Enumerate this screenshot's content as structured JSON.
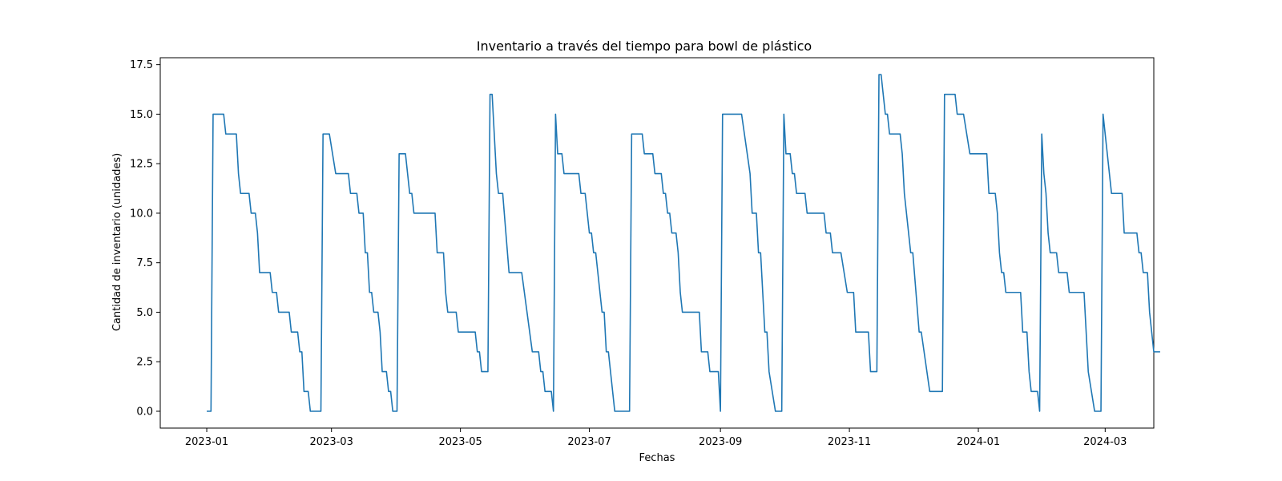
{
  "chart_data": {
    "type": "line",
    "title": "Inventario a través del tiempo para bowl de plástico",
    "xlabel": "Fechas",
    "ylabel": "Cantidad de inventario (unidades)",
    "xlim": [
      "2022-12-10",
      "2024-03-24"
    ],
    "ylim": [
      -0.85,
      17.85
    ],
    "grid": false,
    "x_ticks": [
      "2023-01",
      "2023-03",
      "2023-05",
      "2023-07",
      "2023-09",
      "2023-11",
      "2024-01",
      "2024-03"
    ],
    "y_ticks": [
      "0.0",
      "2.5",
      "5.0",
      "7.5",
      "10.0",
      "12.5",
      "15.0",
      "17.5"
    ],
    "series": [
      {
        "color": "#1f77b4",
        "points": [
          [
            "2023-01-01",
            0
          ],
          [
            "2023-01-03",
            0
          ],
          [
            "2023-01-04",
            15
          ],
          [
            "2023-01-09",
            15
          ],
          [
            "2023-01-10",
            14
          ],
          [
            "2023-01-15",
            14
          ],
          [
            "2023-01-16",
            12
          ],
          [
            "2023-01-17",
            11
          ],
          [
            "2023-01-21",
            11
          ],
          [
            "2023-01-22",
            10
          ],
          [
            "2023-01-24",
            10
          ],
          [
            "2023-01-25",
            9
          ],
          [
            "2023-01-26",
            7
          ],
          [
            "2023-01-31",
            7
          ],
          [
            "2023-02-01",
            6
          ],
          [
            "2023-02-03",
            6
          ],
          [
            "2023-02-04",
            5
          ],
          [
            "2023-02-09",
            5
          ],
          [
            "2023-02-10",
            4
          ],
          [
            "2023-02-13",
            4
          ],
          [
            "2023-02-14",
            3
          ],
          [
            "2023-02-15",
            3
          ],
          [
            "2023-02-16",
            1
          ],
          [
            "2023-02-18",
            1
          ],
          [
            "2023-02-19",
            0
          ],
          [
            "2023-02-24",
            0
          ],
          [
            "2023-02-25",
            14
          ],
          [
            "2023-02-28",
            14
          ],
          [
            "2023-03-03",
            12
          ],
          [
            "2023-03-09",
            12
          ],
          [
            "2023-03-10",
            11
          ],
          [
            "2023-03-13",
            11
          ],
          [
            "2023-03-14",
            10
          ],
          [
            "2023-03-16",
            10
          ],
          [
            "2023-03-17",
            8
          ],
          [
            "2023-03-18",
            8
          ],
          [
            "2023-03-19",
            6
          ],
          [
            "2023-03-20",
            6
          ],
          [
            "2023-03-21",
            5
          ],
          [
            "2023-03-23",
            5
          ],
          [
            "2023-03-24",
            4
          ],
          [
            "2023-03-25",
            2
          ],
          [
            "2023-03-27",
            2
          ],
          [
            "2023-03-28",
            1
          ],
          [
            "2023-03-29",
            1
          ],
          [
            "2023-03-30",
            0
          ],
          [
            "2023-04-01",
            0
          ],
          [
            "2023-04-02",
            13
          ],
          [
            "2023-04-05",
            13
          ],
          [
            "2023-04-07",
            11
          ],
          [
            "2023-04-08",
            11
          ],
          [
            "2023-04-09",
            10
          ],
          [
            "2023-04-19",
            10
          ],
          [
            "2023-04-20",
            8
          ],
          [
            "2023-04-23",
            8
          ],
          [
            "2023-04-24",
            6
          ],
          [
            "2023-04-25",
            5
          ],
          [
            "2023-04-29",
            5
          ],
          [
            "2023-04-30",
            4
          ],
          [
            "2023-05-08",
            4
          ],
          [
            "2023-05-09",
            3
          ],
          [
            "2023-05-10",
            3
          ],
          [
            "2023-05-11",
            2
          ],
          [
            "2023-05-14",
            2
          ],
          [
            "2023-05-15",
            16
          ],
          [
            "2023-05-16",
            16
          ],
          [
            "2023-05-18",
            12
          ],
          [
            "2023-05-19",
            11
          ],
          [
            "2023-05-21",
            11
          ],
          [
            "2023-05-24",
            7
          ],
          [
            "2023-05-30",
            7
          ],
          [
            "2023-06-04",
            3
          ],
          [
            "2023-06-07",
            3
          ],
          [
            "2023-06-08",
            2
          ],
          [
            "2023-06-09",
            2
          ],
          [
            "2023-06-10",
            1
          ],
          [
            "2023-06-13",
            1
          ],
          [
            "2023-06-14",
            0
          ],
          [
            "2023-06-15",
            15
          ],
          [
            "2023-06-16",
            13
          ],
          [
            "2023-06-18",
            13
          ],
          [
            "2023-06-19",
            12
          ],
          [
            "2023-06-26",
            12
          ],
          [
            "2023-06-27",
            11
          ],
          [
            "2023-06-29",
            11
          ],
          [
            "2023-07-01",
            9
          ],
          [
            "2023-07-02",
            9
          ],
          [
            "2023-07-03",
            8
          ],
          [
            "2023-07-04",
            8
          ],
          [
            "2023-07-07",
            5
          ],
          [
            "2023-07-08",
            5
          ],
          [
            "2023-07-09",
            3
          ],
          [
            "2023-07-10",
            3
          ],
          [
            "2023-07-13",
            0
          ],
          [
            "2023-07-20",
            0
          ],
          [
            "2023-07-21",
            14
          ],
          [
            "2023-07-26",
            14
          ],
          [
            "2023-07-27",
            13
          ],
          [
            "2023-07-31",
            13
          ],
          [
            "2023-08-01",
            12
          ],
          [
            "2023-08-04",
            12
          ],
          [
            "2023-08-05",
            11
          ],
          [
            "2023-08-06",
            11
          ],
          [
            "2023-08-07",
            10
          ],
          [
            "2023-08-08",
            10
          ],
          [
            "2023-08-09",
            9
          ],
          [
            "2023-08-11",
            9
          ],
          [
            "2023-08-12",
            8
          ],
          [
            "2023-08-13",
            6
          ],
          [
            "2023-08-14",
            5
          ],
          [
            "2023-08-22",
            5
          ],
          [
            "2023-08-23",
            3
          ],
          [
            "2023-08-26",
            3
          ],
          [
            "2023-08-27",
            2
          ],
          [
            "2023-08-31",
            2
          ],
          [
            "2023-09-01",
            0
          ],
          [
            "2023-09-02",
            15
          ],
          [
            "2023-09-11",
            15
          ],
          [
            "2023-09-15",
            12
          ],
          [
            "2023-09-16",
            10
          ],
          [
            "2023-09-18",
            10
          ],
          [
            "2023-09-19",
            8
          ],
          [
            "2023-09-20",
            8
          ],
          [
            "2023-09-22",
            4
          ],
          [
            "2023-09-23",
            4
          ],
          [
            "2023-09-24",
            2
          ],
          [
            "2023-09-27",
            0
          ],
          [
            "2023-09-30",
            0
          ],
          [
            "2023-10-01",
            15
          ],
          [
            "2023-10-02",
            13
          ],
          [
            "2023-10-04",
            13
          ],
          [
            "2023-10-05",
            12
          ],
          [
            "2023-10-06",
            12
          ],
          [
            "2023-10-07",
            11
          ],
          [
            "2023-10-11",
            11
          ],
          [
            "2023-10-12",
            10
          ],
          [
            "2023-10-20",
            10
          ],
          [
            "2023-10-21",
            9
          ],
          [
            "2023-10-23",
            9
          ],
          [
            "2023-10-24",
            8
          ],
          [
            "2023-10-28",
            8
          ],
          [
            "2023-10-31",
            6
          ],
          [
            "2023-11-03",
            6
          ],
          [
            "2023-11-04",
            4
          ],
          [
            "2023-11-10",
            4
          ],
          [
            "2023-11-11",
            2
          ],
          [
            "2023-11-14",
            2
          ],
          [
            "2023-11-15",
            17
          ],
          [
            "2023-11-16",
            17
          ],
          [
            "2023-11-18",
            15
          ],
          [
            "2023-11-19",
            15
          ],
          [
            "2023-11-20",
            14
          ],
          [
            "2023-11-25",
            14
          ],
          [
            "2023-11-26",
            13
          ],
          [
            "2023-11-27",
            11
          ],
          [
            "2023-11-30",
            8
          ],
          [
            "2023-12-01",
            8
          ],
          [
            "2023-12-04",
            4
          ],
          [
            "2023-12-05",
            4
          ],
          [
            "2023-12-09",
            1
          ],
          [
            "2023-12-15",
            1
          ],
          [
            "2023-12-16",
            16
          ],
          [
            "2023-12-21",
            16
          ],
          [
            "2023-12-22",
            15
          ],
          [
            "2023-12-25",
            15
          ],
          [
            "2023-12-28",
            13
          ],
          [
            "2024-01-05",
            13
          ],
          [
            "2024-01-06",
            11
          ],
          [
            "2024-01-09",
            11
          ],
          [
            "2024-01-10",
            10
          ],
          [
            "2024-01-11",
            8
          ],
          [
            "2024-01-12",
            7
          ],
          [
            "2024-01-13",
            7
          ],
          [
            "2024-01-14",
            6
          ],
          [
            "2024-01-21",
            6
          ],
          [
            "2024-01-22",
            4
          ],
          [
            "2024-01-24",
            4
          ],
          [
            "2024-01-25",
            2
          ],
          [
            "2024-01-26",
            1
          ],
          [
            "2024-01-29",
            1
          ],
          [
            "2024-01-30",
            0
          ],
          [
            "2024-01-31",
            14
          ],
          [
            "2024-02-01",
            12
          ],
          [
            "2024-02-02",
            11
          ],
          [
            "2024-02-03",
            9
          ],
          [
            "2024-02-04",
            8
          ],
          [
            "2024-02-07",
            8
          ],
          [
            "2024-02-08",
            7
          ],
          [
            "2024-02-12",
            7
          ],
          [
            "2024-02-13",
            6
          ],
          [
            "2024-02-20",
            6
          ],
          [
            "2024-02-22",
            2
          ],
          [
            "2024-02-25",
            0
          ],
          [
            "2024-02-28",
            0
          ],
          [
            "2024-02-29",
            15
          ],
          [
            "2024-03-04",
            11
          ],
          [
            "2024-03-09",
            11
          ],
          [
            "2024-03-10",
            9
          ],
          [
            "2024-03-16",
            9
          ],
          [
            "2024-03-17",
            8
          ],
          [
            "2024-03-18",
            8
          ],
          [
            "2024-03-19",
            7
          ],
          [
            "2024-03-21",
            7
          ],
          [
            "2024-03-22",
            5
          ],
          [
            "2024-03-24",
            3
          ],
          [
            "2024-03-27",
            3
          ]
        ]
      }
    ]
  }
}
